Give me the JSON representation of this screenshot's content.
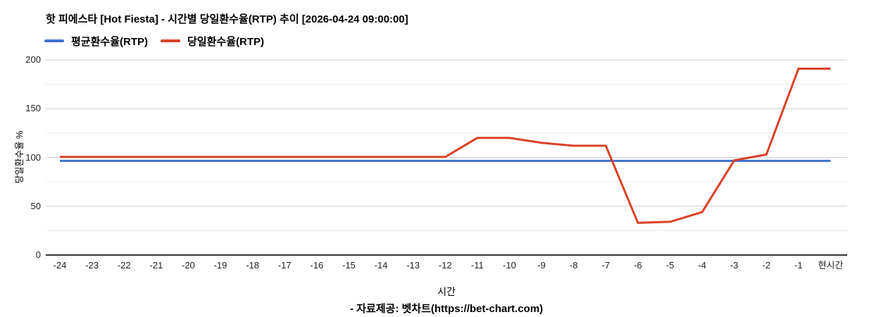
{
  "title": "핫 피에스타 [Hot Fiesta] - 시간별 당일환수율(RTP) 추이 [2026-04-24 09:00:00]",
  "footer": "- 자료제공: 벳차트(https://bet-chart.com)",
  "legend": {
    "items": [
      {
        "label": "평균환수율(RTP)",
        "color": "#3e6fd0"
      },
      {
        "label": "당일환수율(RTP)",
        "color": "#d84226"
      }
    ]
  },
  "colors": {
    "avg_line": "#3e6fd0",
    "daily_line": "#d84226",
    "grid_major": "#cccccc",
    "grid_minor": "#ebebeb",
    "axis_baseline": "#333333"
  },
  "chart_data": {
    "type": "line",
    "title": "핫 피에스타 [Hot Fiesta] - 시간별 당일환수율(RTP) 추이 [2026-04-24 09:00:00]",
    "xlabel": "시간",
    "ylabel": "당일환수율 %",
    "ylim": [
      0,
      200
    ],
    "yticks": [
      0,
      50,
      100,
      150,
      200
    ],
    "yticks_minor": [
      25,
      75,
      125,
      175
    ],
    "grid": true,
    "legend_position": "top-left",
    "categories": [
      "-24",
      "-23",
      "-22",
      "-21",
      "-20",
      "-19",
      "-18",
      "-17",
      "-16",
      "-15",
      "-14",
      "-13",
      "-12",
      "-11",
      "-10",
      "-9",
      "-8",
      "-7",
      "-6",
      "-5",
      "-4",
      "-3",
      "-2",
      "-1",
      "현시간"
    ],
    "series": [
      {
        "name": "평균환수율(RTP)",
        "color": "#3e6fd0",
        "values": [
          96.5,
          96.5,
          96.5,
          96.5,
          96.5,
          96.5,
          96.5,
          96.5,
          96.5,
          96.5,
          96.5,
          96.5,
          96.5,
          96.5,
          96.5,
          96.5,
          96.5,
          96.5,
          96.5,
          96.5,
          96.5,
          96.5,
          96.5,
          96.5,
          96.5
        ]
      },
      {
        "name": "당일환수율(RTP)",
        "color": "#d84226",
        "values": [
          100.5,
          100.5,
          100.5,
          100.5,
          100.5,
          100.5,
          100.5,
          100.5,
          100.5,
          100.5,
          100.5,
          100.5,
          100.5,
          120,
          120,
          115,
          112,
          112,
          33,
          34,
          44,
          97,
          103,
          191,
          191
        ]
      }
    ]
  }
}
